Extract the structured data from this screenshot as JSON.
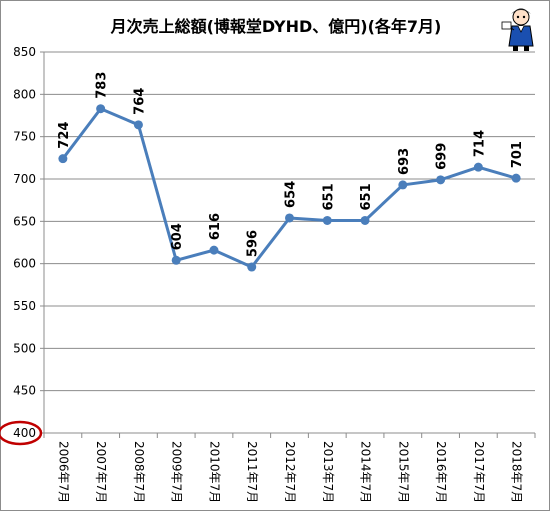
{
  "chart_data": {
    "type": "line",
    "title": "月次売上総額(博報堂DYHD、億円)(各年7月)",
    "categories": [
      "2006年7月",
      "2007年7月",
      "2008年7月",
      "2009年7月",
      "2010年7月",
      "2011年7月",
      "2012年7月",
      "2013年7月",
      "2014年7月",
      "2015年7月",
      "2016年7月",
      "2017年7月",
      "2018年7月"
    ],
    "series": [
      {
        "values": [
          724,
          783,
          764,
          604,
          616,
          596,
          654,
          651,
          651,
          693,
          699,
          714,
          701
        ]
      }
    ],
    "data_labels": [
      "724",
      "783",
      "764",
      "604",
      "616",
      "596",
      "654",
      "651",
      "651",
      "693",
      "699",
      "714",
      "701"
    ],
    "ylim": [
      400,
      850
    ],
    "yticks": [
      "400",
      "450",
      "500",
      "550",
      "600",
      "650",
      "700",
      "750",
      "800",
      "850"
    ],
    "grid": true,
    "legend": "none",
    "line_color": "#4a7ebb",
    "highlight_tick": "400",
    "highlight_color": "#c00000",
    "xlabel": "",
    "ylabel": ""
  },
  "decor": {
    "mascot_icon": "mascot-icon"
  }
}
